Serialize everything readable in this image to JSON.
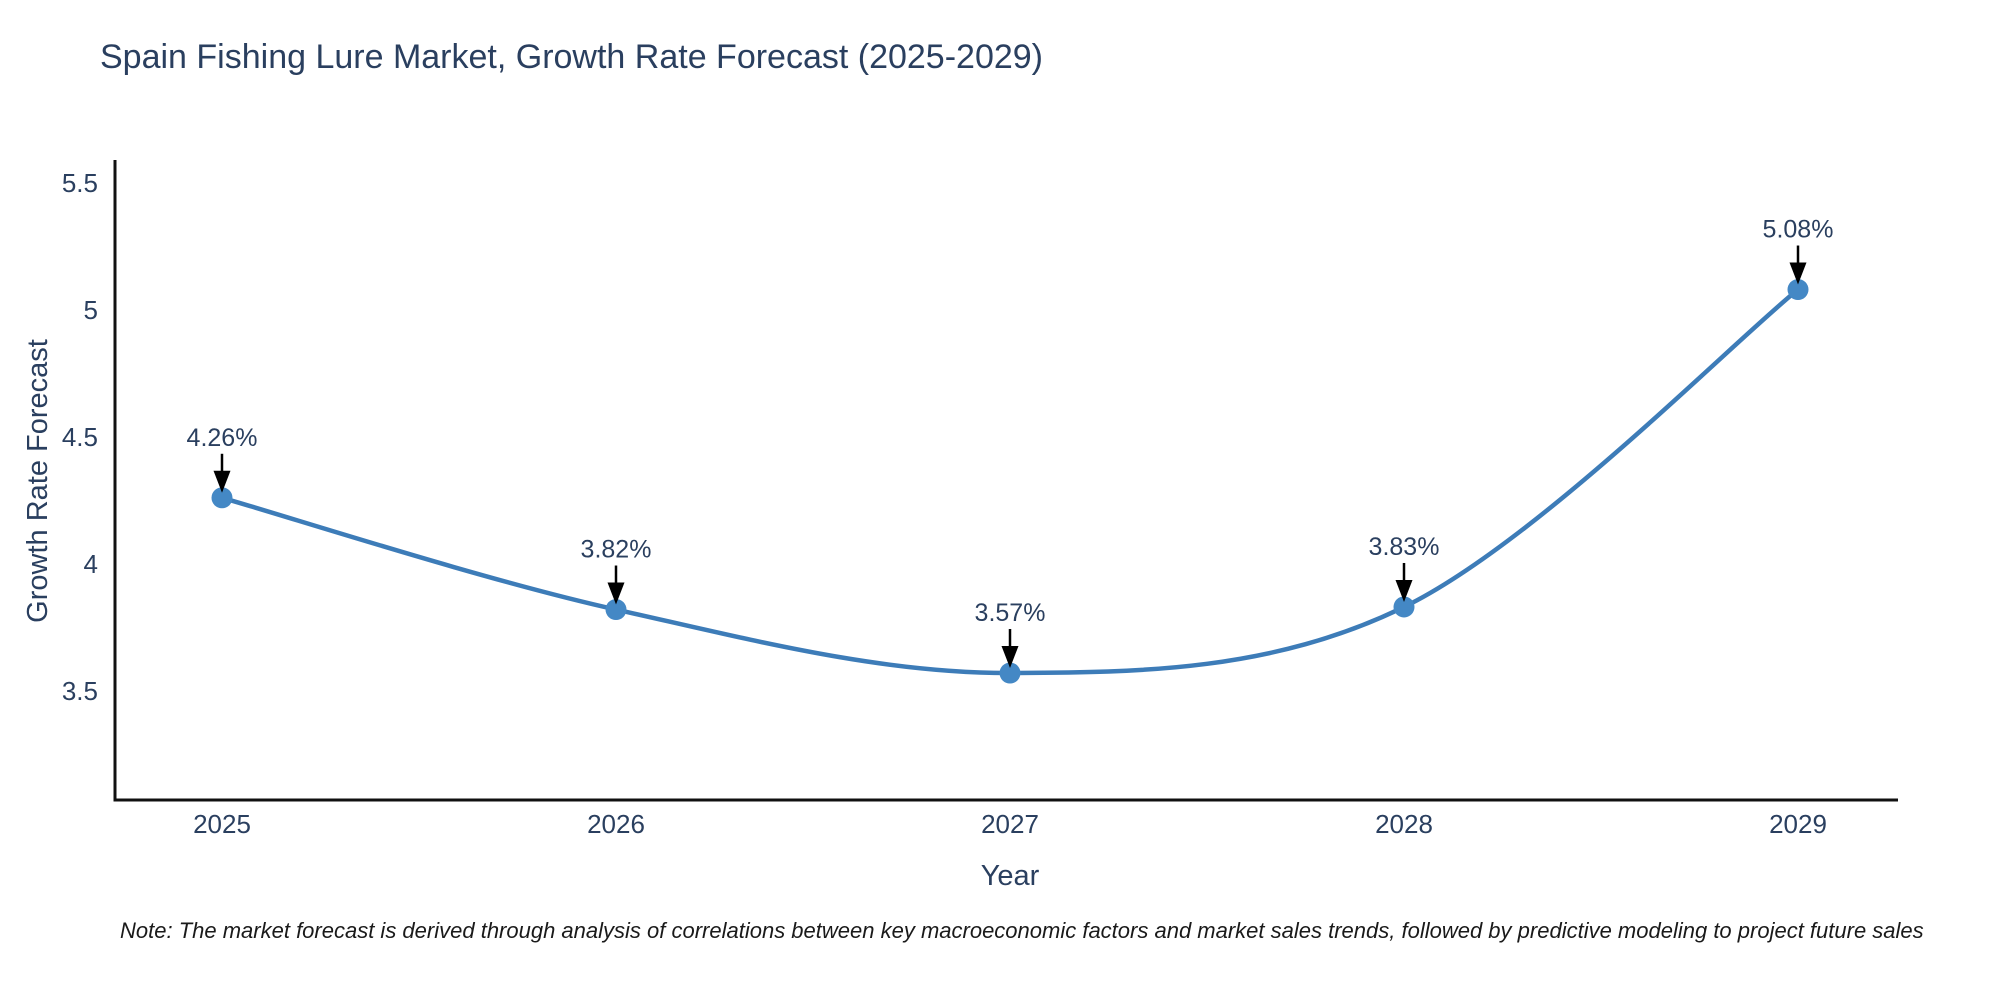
{
  "title": "Spain Fishing Lure Market, Growth Rate Forecast (2025-2029)",
  "note": "Note: The market forecast is derived through analysis of correlations between key macroeconomic factors and market sales trends, followed by predictive modeling to project future sales",
  "chart_data": {
    "type": "line",
    "title": "Spain Fishing Lure Market, Growth Rate Forecast (2025-2029)",
    "categories": [
      "2025",
      "2026",
      "2027",
      "2028",
      "2029"
    ],
    "values": [
      4.26,
      3.82,
      3.57,
      3.83,
      5.08
    ],
    "point_labels": [
      "4.26%",
      "3.82%",
      "3.57%",
      "3.83%",
      "5.08%"
    ],
    "xlabel": "Year",
    "ylabel": "Growth Rate Forecast",
    "yticks": [
      "3.5",
      "4",
      "4.5",
      "5",
      "5.5"
    ],
    "ytick_values": [
      3.5,
      4,
      4.5,
      5,
      5.5
    ],
    "ylim": [
      3.07,
      5.59
    ],
    "line_shape": "spline",
    "grid": false,
    "legend": "none",
    "colors": {
      "line": "#3d7cb8",
      "marker": "#4488c5",
      "axis": "#111111",
      "text": "#2a3f5f",
      "annotation_arrow": "#000000"
    }
  }
}
